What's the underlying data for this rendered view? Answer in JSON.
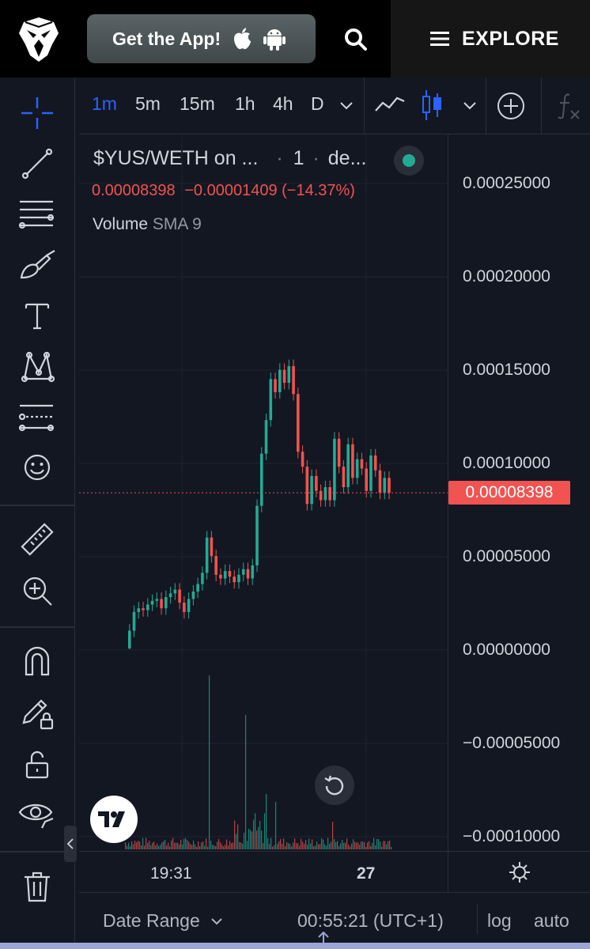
{
  "header": {
    "get_app_label": "Get the App!",
    "explore_label": "EXPLORE"
  },
  "timeframes": [
    {
      "label": "1m",
      "active": true
    },
    {
      "label": "5m",
      "active": false
    },
    {
      "label": "15m",
      "active": false
    },
    {
      "label": "1h",
      "active": false
    },
    {
      "label": "4h",
      "active": false
    },
    {
      "label": "D",
      "active": false
    }
  ],
  "legend": {
    "symbol": "$YUS/WETH on ...",
    "interval_separator": "·",
    "interval": "1",
    "exchange": "de...",
    "last_price": "0.00008398",
    "change": "−0.00001409 (−14.37%)",
    "volume_label": "Volume",
    "volume_indicator": "SMA 9"
  },
  "chart_data": {
    "type": "candlestick",
    "price_axis_ticks": [
      "0.00025000",
      "0.00020000",
      "0.00015000",
      "0.00010000",
      "0.00005000",
      "0.00000000",
      "−0.00005000",
      "−0.00010000"
    ],
    "ylim": [
      -0.0001,
      0.00025
    ],
    "time_axis_ticks": [
      "19:31",
      "27"
    ],
    "last_price": 8.398e-05,
    "last_price_label": "0.00008398",
    "up_color": "#22ab94",
    "down_color": "#f05350",
    "closes": [
      5e-07,
      1e-05,
      2e-05,
      2.2e-05,
      2.1e-05,
      2.4e-05,
      2.6e-05,
      2.7e-05,
      2.2e-05,
      2.8e-05,
      3e-05,
      3.2e-05,
      2.5e-05,
      2e-05,
      2.7e-05,
      3.1e-05,
      3.5e-05,
      4.1e-05,
      6e-05,
      5e-05,
      4e-05,
      3.8e-05,
      4.2e-05,
      3.9e-05,
      3.6e-05,
      4e-05,
      4.3e-05,
      3.8e-05,
      4.5e-05,
      7.7e-05,
      0.000105,
      0.000123,
      0.000145,
      0.000138,
      0.00015,
      0.000143,
      0.000152,
      0.000137,
      0.000106,
      9.8e-05,
      7.8e-05,
      9.3e-05,
      8.5e-05,
      8e-05,
      8.7e-05,
      8e-05,
      0.000113,
      9.8e-05,
      8.7e-05,
      0.00011,
      9.2e-05,
      0.000102,
      9.7e-05,
      8.5e-05,
      0.000104,
      9.6e-05,
      8.4e-05,
      9.2e-05,
      8.4e-05
    ]
  },
  "toolbar": {
    "date_range_label": "Date Range",
    "time_label": "00:55:21 (UTC+1)",
    "log_label": "log",
    "auto_label": "auto"
  }
}
